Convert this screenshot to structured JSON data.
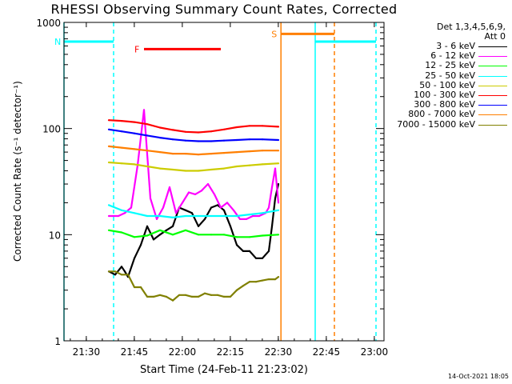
{
  "chart_data": {
    "type": "line",
    "title": "RHESSI Observing Summary Count Rates, Corrected",
    "xlabel": "Start Time (24-Feb-11 21:23:02)",
    "ylabel": "Corrected Count Rate (s⁻¹ detector⁻¹)",
    "yscale": "log",
    "ylim": [
      1,
      1000
    ],
    "xlim_minutes": [
      0,
      100
    ],
    "x_ticks": [
      {
        "label": "21:30",
        "min": 6.97
      },
      {
        "label": "21:45",
        "min": 21.97
      },
      {
        "label": "22:00",
        "min": 36.97
      },
      {
        "label": "22:15",
        "min": 51.97
      },
      {
        "label": "22:30",
        "min": 66.97
      },
      {
        "label": "22:45",
        "min": 81.97
      },
      {
        "label": "23:00",
        "min": 96.97
      }
    ],
    "y_ticks": [
      {
        "label": "1",
        "value": 1
      },
      {
        "label": "10",
        "value": 10
      },
      {
        "label": "100",
        "value": 100
      },
      {
        "label": "1000",
        "value": 1000
      }
    ],
    "legend_header": [
      "Det 1,3,4,5,6,9,",
      "Att 0"
    ],
    "legend_position": "right",
    "series": [
      {
        "name": "3 - 6 keV",
        "color": "#000000",
        "x": [
          14,
          16,
          18,
          19,
          20,
          22,
          24,
          26,
          28,
          30,
          32,
          34,
          36,
          38,
          40,
          42,
          44,
          46,
          48,
          50,
          52,
          54,
          56,
          58,
          60,
          62,
          64,
          65,
          66,
          67
        ],
        "y": [
          4.5,
          4.2,
          5,
          4.5,
          4,
          6,
          8,
          12,
          9,
          10,
          11,
          12,
          18,
          17,
          16,
          12,
          14,
          18,
          19,
          17,
          12,
          8,
          7,
          7,
          6,
          6,
          7,
          12,
          22,
          30
        ]
      },
      {
        "name": "6 - 12 keV",
        "color": "#ff00ff",
        "x": [
          14,
          17,
          19,
          21,
          23,
          25,
          27,
          29,
          31,
          33,
          35,
          37,
          39,
          41,
          43,
          45,
          47,
          49,
          51,
          53,
          55,
          57,
          59,
          61,
          63,
          64,
          65,
          66,
          67
        ],
        "y": [
          15,
          15,
          16,
          18,
          45,
          150,
          22,
          14,
          18,
          28,
          16,
          20,
          25,
          24,
          26,
          30,
          24,
          18,
          20,
          17,
          14,
          14,
          15,
          15,
          16,
          18,
          28,
          42,
          20
        ]
      },
      {
        "name": "12 - 25 keV",
        "color": "#00ff00",
        "x": [
          14,
          18,
          22,
          26,
          30,
          34,
          38,
          42,
          46,
          50,
          54,
          58,
          62,
          67
        ],
        "y": [
          11,
          10.5,
          9.5,
          9.8,
          11,
          10,
          11,
          10,
          10,
          10,
          9.5,
          9.5,
          9.8,
          10
        ]
      },
      {
        "name": "25 - 50 keV",
        "color": "#00ffff",
        "x": [
          14,
          18,
          22,
          26,
          30,
          34,
          38,
          42,
          46,
          50,
          54,
          58,
          62,
          67
        ],
        "y": [
          19,
          17,
          16,
          15,
          15,
          14.5,
          15,
          15,
          15,
          15,
          15,
          15.5,
          16,
          17
        ]
      },
      {
        "name": "50 - 100 keV",
        "color": "#cccc00",
        "x": [
          14,
          18,
          22,
          26,
          30,
          34,
          38,
          42,
          46,
          50,
          54,
          58,
          62,
          67
        ],
        "y": [
          48,
          47,
          46,
          44,
          42,
          41,
          40,
          40,
          41,
          42,
          44,
          45,
          46,
          47
        ]
      },
      {
        "name": "100 - 300 keV",
        "color": "#ff0000",
        "x": [
          14,
          18,
          22,
          26,
          30,
          34,
          38,
          42,
          46,
          50,
          54,
          58,
          62,
          67
        ],
        "y": [
          120,
          118,
          115,
          110,
          102,
          97,
          93,
          92,
          94,
          98,
          103,
          106,
          106,
          104
        ]
      },
      {
        "name": "300 - 800 keV",
        "color": "#0000ff",
        "x": [
          14,
          18,
          22,
          26,
          30,
          34,
          38,
          42,
          46,
          50,
          54,
          58,
          62,
          67
        ],
        "y": [
          98,
          94,
          90,
          86,
          82,
          79,
          77,
          76,
          76,
          77,
          78,
          79,
          79,
          78
        ]
      },
      {
        "name": "800 - 7000 keV",
        "color": "#ff7f00",
        "x": [
          14,
          18,
          22,
          26,
          30,
          34,
          38,
          42,
          46,
          50,
          54,
          58,
          62,
          67
        ],
        "y": [
          68,
          66,
          64,
          62,
          60,
          58,
          58,
          57,
          58,
          59,
          60,
          61,
          62,
          62
        ]
      },
      {
        "name": "7000 - 15000 keV",
        "color": "#808000",
        "x": [
          14,
          16,
          18,
          20,
          22,
          24,
          26,
          28,
          30,
          32,
          34,
          36,
          38,
          40,
          42,
          44,
          46,
          48,
          50,
          52,
          54,
          56,
          58,
          60,
          62,
          64,
          66,
          67
        ],
        "y": [
          4.5,
          4.5,
          4.2,
          4.2,
          3.2,
          3.2,
          2.6,
          2.6,
          2.7,
          2.6,
          2.4,
          2.7,
          2.7,
          2.6,
          2.6,
          2.8,
          2.7,
          2.7,
          2.6,
          2.6,
          3.0,
          3.3,
          3.6,
          3.6,
          3.7,
          3.8,
          3.8,
          4.0
        ]
      }
    ],
    "orbit_lines": [
      {
        "color": "#00ffff",
        "style": "solid",
        "min": 0.0
      },
      {
        "color": "#00ffff",
        "style": "dashed",
        "min": 15.5
      },
      {
        "color": "#ff7f00",
        "style": "solid",
        "min": 67.8
      },
      {
        "color": "#00ffff",
        "style": "solid",
        "min": 78.5
      },
      {
        "color": "#ff7f00",
        "style": "dashed",
        "min": 84.5
      },
      {
        "color": "#00ffff",
        "style": "dashed",
        "min": 97.5
      }
    ],
    "flag_bars": [
      {
        "label": "N",
        "color": "#00ffff",
        "start_min": 0.0,
        "end_min": 15.5,
        "y_value": 660
      },
      {
        "label": "",
        "color": "#00ffff",
        "start_min": 78.5,
        "end_min": 97.5,
        "y_value": 660
      },
      {
        "label": "F",
        "color": "#ff0000",
        "start_min": 25.0,
        "end_min": 49.0,
        "y_value": 560
      },
      {
        "label": "S",
        "color": "#ff7f00",
        "start_min": 67.8,
        "end_min": 84.5,
        "y_value": 780
      }
    ],
    "grid": false
  },
  "footer_date": "14-Oct-2021 18:05"
}
